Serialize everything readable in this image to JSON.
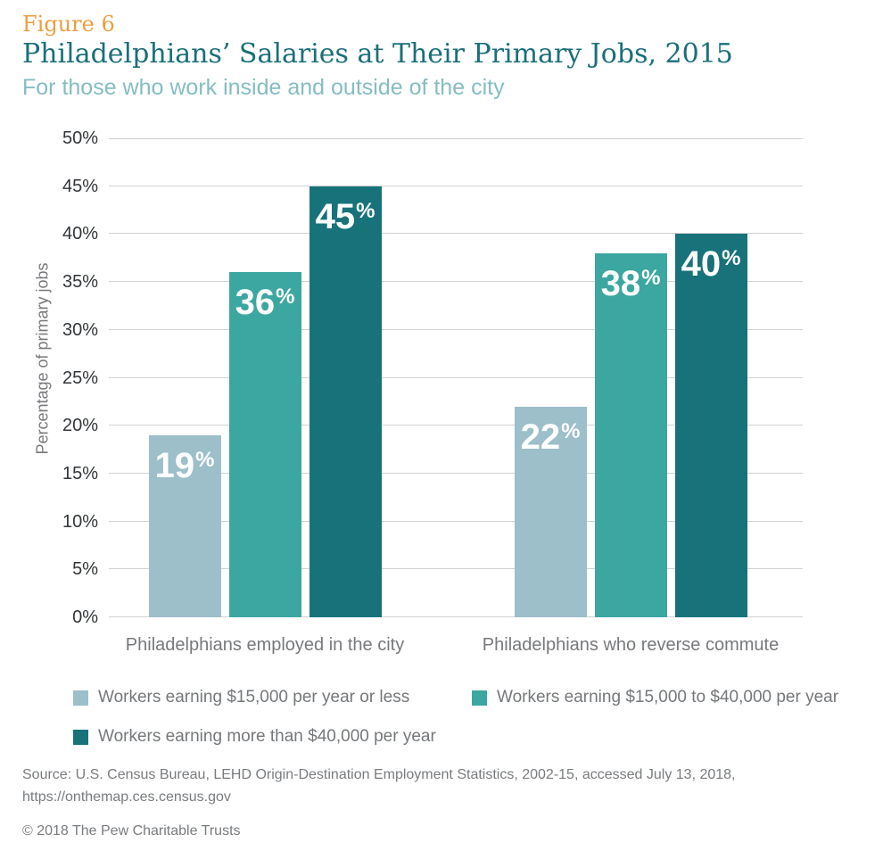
{
  "header": {
    "figure_label": "Figure 6",
    "title": "Philadelphians’ Salaries at Their Primary Jobs, 2015",
    "subtitle": "For those who work inside and outside of the city"
  },
  "chart_data": {
    "type": "bar",
    "title": "Philadelphians’ Salaries at Their Primary Jobs, 2015",
    "subtitle": "For those who work inside and outside of the city",
    "categories": [
      "Philadelphians employed in the city",
      "Philadelphians who reverse commute"
    ],
    "series": [
      {
        "name": "Workers earning $15,000 per year or less",
        "values": [
          19,
          22
        ],
        "color": "#9CBFCA"
      },
      {
        "name": "Workers earning $15,000 to $40,000 per year",
        "values": [
          36,
          38
        ],
        "color": "#3BA7A0"
      },
      {
        "name": "Workers earning more than $40,000 per year",
        "values": [
          45,
          40
        ],
        "color": "#17727A"
      }
    ],
    "xlabel": "",
    "ylabel": "Percentage of primary jobs",
    "ylim": [
      0,
      50
    ],
    "ytick_step": 5,
    "tick_suffix": "%",
    "bar_label_suffix": "%",
    "grid": true,
    "legend_position": "bottom"
  },
  "colors": {
    "figure_label": "#EC9E40",
    "title": "#1A6F79",
    "subtitle": "#85BDC2",
    "grid": "#D2D2D2",
    "tick_text": "#333639",
    "axis_text": "#77797C",
    "legend_text": "#75787B",
    "footer_text": "#797C7F",
    "bar_value_text": "#FFFFFF",
    "background": "#FFFFFF"
  },
  "footer": {
    "source_line1": "Source: U.S. Census Bureau, LEHD Origin-Destination Employment Statistics, 2002-15, accessed July 13, 2018,",
    "source_line2": "https://onthemap.ces.census.gov",
    "copyright": "© 2018 The Pew Charitable Trusts"
  }
}
